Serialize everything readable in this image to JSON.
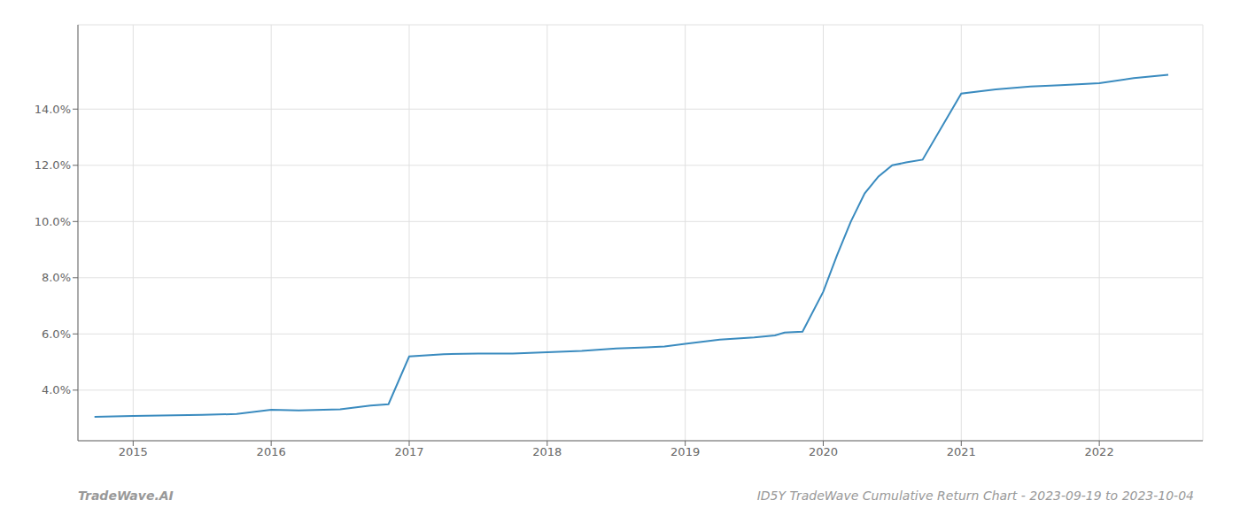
{
  "chart_data": {
    "type": "line",
    "x": [
      2014.72,
      2015.0,
      2015.2,
      2015.5,
      2015.75,
      2016.0,
      2016.2,
      2016.5,
      2016.72,
      2016.85,
      2017.0,
      2017.25,
      2017.5,
      2017.75,
      2018.0,
      2018.25,
      2018.5,
      2018.72,
      2018.85,
      2019.0,
      2019.25,
      2019.5,
      2019.65,
      2019.72,
      2019.85,
      2020.0,
      2020.1,
      2020.2,
      2020.3,
      2020.4,
      2020.5,
      2020.6,
      2020.72,
      2021.0,
      2021.25,
      2021.5,
      2021.72,
      2022.0,
      2022.25,
      2022.5
    ],
    "values": [
      3.05,
      3.08,
      3.1,
      3.12,
      3.15,
      3.3,
      3.28,
      3.32,
      3.45,
      3.5,
      5.2,
      5.28,
      5.3,
      5.3,
      5.35,
      5.4,
      5.48,
      5.52,
      5.55,
      5.65,
      5.8,
      5.88,
      5.95,
      6.05,
      6.08,
      7.5,
      8.8,
      10.0,
      11.0,
      11.6,
      12.0,
      12.1,
      12.2,
      14.55,
      14.7,
      14.8,
      14.85,
      14.92,
      15.1,
      15.22
    ],
    "color": "#3a8bbf",
    "xlim": [
      2014.6,
      2022.75
    ],
    "ylim": [
      2.2,
      17.0
    ],
    "xticks": [
      2015,
      2016,
      2017,
      2018,
      2019,
      2020,
      2021,
      2022
    ],
    "yticks": [
      {
        "value": 4.0,
        "label": "4.0%"
      },
      {
        "value": 6.0,
        "label": "6.0%"
      },
      {
        "value": 8.0,
        "label": "8.0%"
      },
      {
        "value": 10.0,
        "label": "10.0%"
      },
      {
        "value": 12.0,
        "label": "12.0%"
      },
      {
        "value": 14.0,
        "label": "14.0%"
      }
    ],
    "grid": true,
    "annotations": [
      "TradeWave.AI",
      "ID5Y TradeWave Cumulative Return Chart - 2023-09-19 to 2023-10-04"
    ]
  }
}
